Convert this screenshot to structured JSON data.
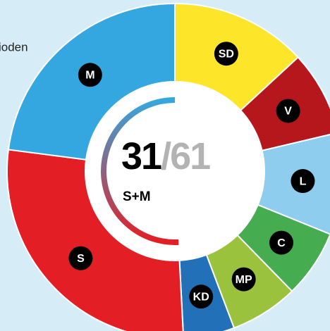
{
  "chart_data": {
    "type": "donut",
    "annotation": "ioden",
    "categories": [
      "SD",
      "V",
      "L",
      "C",
      "MP",
      "KD",
      "S",
      "M"
    ],
    "values": [
      8,
      5,
      6,
      4,
      4,
      3,
      17,
      14
    ],
    "colors": [
      "#fde52a",
      "#b5171d",
      "#8ecdee",
      "#46ac50",
      "#9bc23c",
      "#2271b8",
      "#e31e24",
      "#35a7e0"
    ],
    "center": {
      "value": 31,
      "total_label": "/61",
      "label": "S+M"
    }
  }
}
